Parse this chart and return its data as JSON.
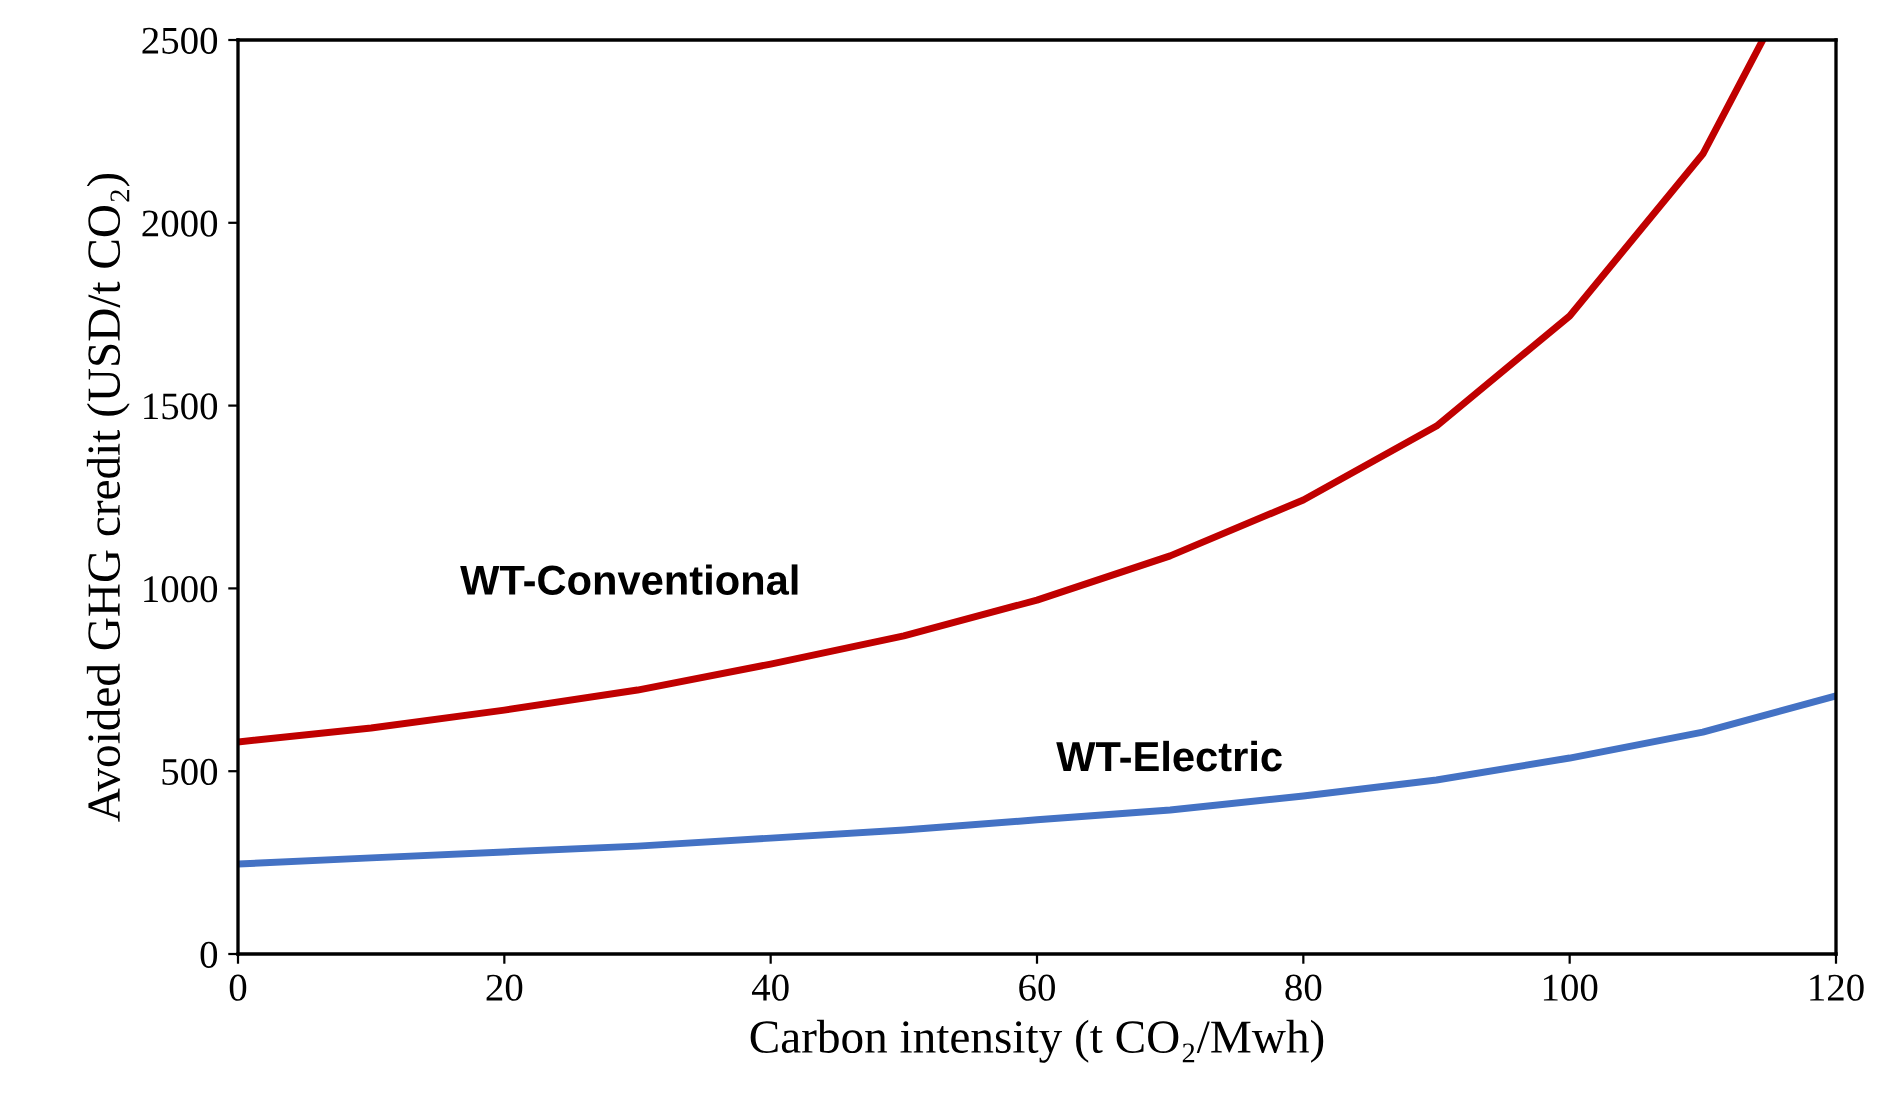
{
  "chart_data": {
    "type": "line",
    "xlabel": "Carbon intensity (t CO₂/Mwh)",
    "ylabel": "Avoided GHG credit (USD/t CO₂)",
    "xlim": [
      0,
      120
    ],
    "xticks": [
      0,
      20,
      40,
      60,
      80,
      100,
      120
    ],
    "ylim": [
      0,
      2500
    ],
    "yticks": [
      0,
      500,
      1000,
      1500,
      2000,
      2500
    ],
    "grid": false,
    "legend": false,
    "marker": "none",
    "line_style": "solid",
    "series": [
      {
        "name": "WT-Conventional",
        "color": "#c00000",
        "x": [
          0,
          10,
          20,
          30,
          40,
          50,
          60,
          70,
          80,
          90,
          100,
          110,
          114.5
        ],
        "values": [
          580,
          618,
          667,
          722,
          793,
          870,
          968,
          1089,
          1242,
          1444,
          1745,
          2188,
          2500
        ]
      },
      {
        "name": "WT-Electric",
        "color": "#4472c4",
        "x": [
          0,
          10,
          20,
          30,
          40,
          50,
          60,
          70,
          80,
          90,
          100,
          110,
          120
        ],
        "values": [
          246,
          263,
          279,
          295,
          317,
          339,
          367,
          394,
          432,
          476,
          536,
          607,
          706
        ]
      }
    ]
  }
}
